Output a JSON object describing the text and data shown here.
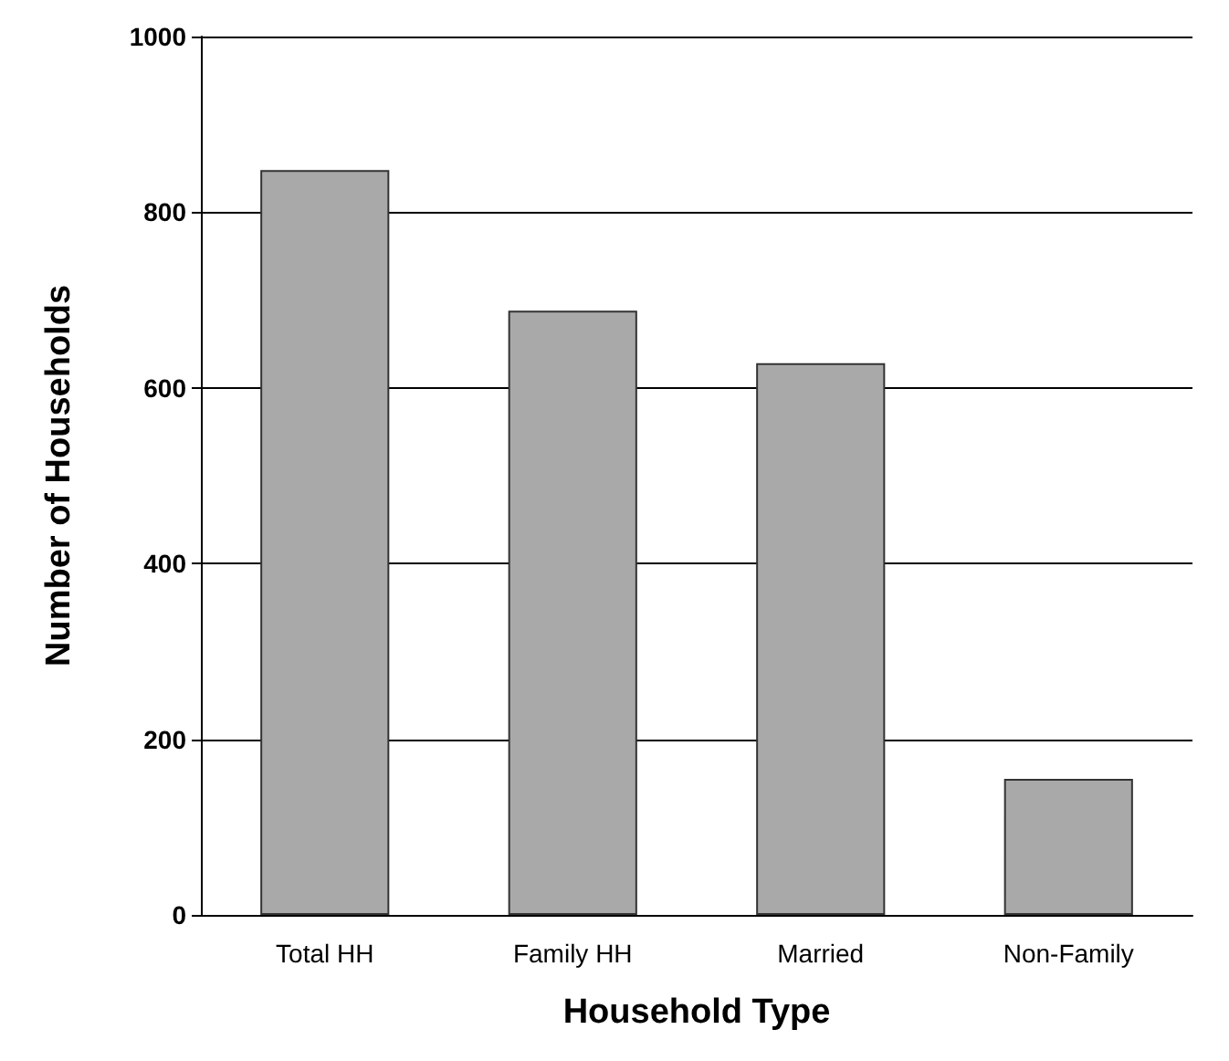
{
  "chart_data": {
    "type": "bar",
    "xlabel": "Household Type",
    "ylabel": "Number of Households",
    "categories": [
      "Total HH",
      "Family HH",
      "Married",
      "Non-Family"
    ],
    "values": [
      848,
      688,
      628,
      155
    ],
    "color": "#a9a9a9",
    "ylim": [
      0,
      1000
    ],
    "yticks": [
      0,
      200,
      400,
      600,
      800,
      1000
    ],
    "grid": "y"
  }
}
